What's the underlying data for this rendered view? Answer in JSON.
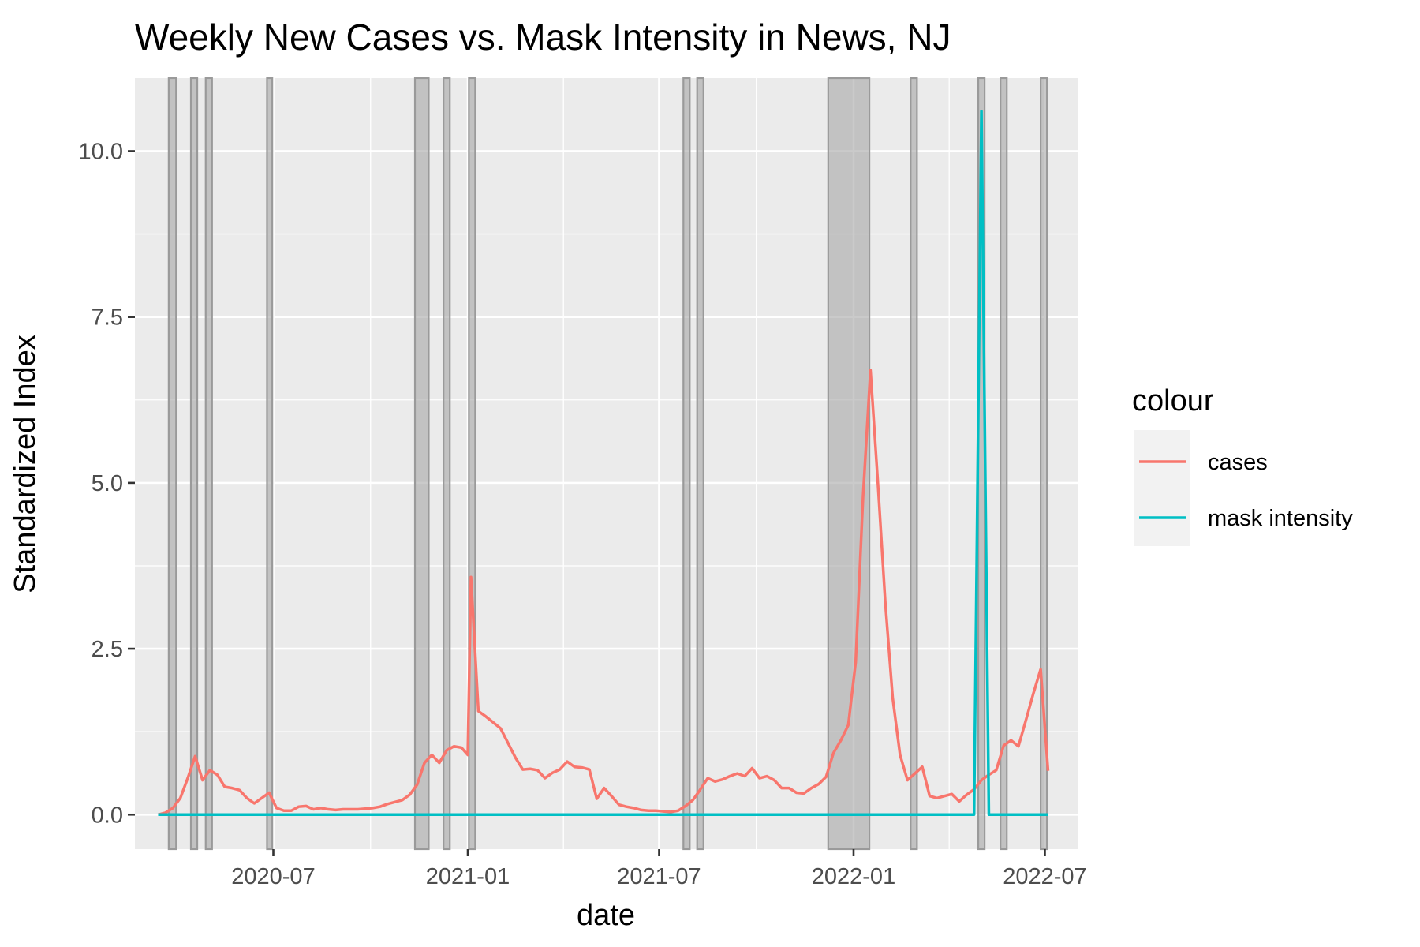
{
  "chart_data": {
    "type": "line",
    "title": "Weekly New Cases vs. Mask Intensity in News, NJ",
    "xlabel": "date",
    "ylabel": "Standardized Index",
    "x_ticks": [
      "2020-07",
      "2021-01",
      "2021-07",
      "2022-01",
      "2022-07"
    ],
    "y_ticks": [
      "0.0",
      "2.5",
      "5.0",
      "7.5",
      "10.0"
    ],
    "ylim": [
      -0.52,
      11.1
    ],
    "xlim": [
      "2020-02-21",
      "2022-08-01"
    ],
    "grid": true,
    "legend": {
      "title": "colour",
      "position": "right"
    },
    "series": [
      {
        "name": "cases",
        "color": "#F8766D",
        "points": [
          [
            "2020-03-14",
            0.0
          ],
          [
            "2020-03-21",
            0.03
          ],
          [
            "2020-03-28",
            0.1
          ],
          [
            "2020-04-04",
            0.25
          ],
          [
            "2020-04-11",
            0.55
          ],
          [
            "2020-04-18",
            0.88
          ],
          [
            "2020-04-25",
            0.52
          ],
          [
            "2020-05-02",
            0.67
          ],
          [
            "2020-05-09",
            0.6
          ],
          [
            "2020-05-16",
            0.42
          ],
          [
            "2020-05-23",
            0.4
          ],
          [
            "2020-05-30",
            0.37
          ],
          [
            "2020-06-06",
            0.25
          ],
          [
            "2020-06-13",
            0.17
          ],
          [
            "2020-06-20",
            0.25
          ],
          [
            "2020-06-27",
            0.33
          ],
          [
            "2020-07-04",
            0.1
          ],
          [
            "2020-07-11",
            0.06
          ],
          [
            "2020-07-18",
            0.06
          ],
          [
            "2020-07-25",
            0.12
          ],
          [
            "2020-08-01",
            0.13
          ],
          [
            "2020-08-08",
            0.08
          ],
          [
            "2020-08-15",
            0.1
          ],
          [
            "2020-08-22",
            0.08
          ],
          [
            "2020-08-29",
            0.07
          ],
          [
            "2020-09-05",
            0.08
          ],
          [
            "2020-09-12",
            0.08
          ],
          [
            "2020-09-19",
            0.08
          ],
          [
            "2020-09-26",
            0.09
          ],
          [
            "2020-10-03",
            0.1
          ],
          [
            "2020-10-10",
            0.12
          ],
          [
            "2020-10-17",
            0.16
          ],
          [
            "2020-10-24",
            0.19
          ],
          [
            "2020-10-31",
            0.22
          ],
          [
            "2020-11-07",
            0.3
          ],
          [
            "2020-11-14",
            0.45
          ],
          [
            "2020-11-21",
            0.78
          ],
          [
            "2020-11-28",
            0.9
          ],
          [
            "2020-12-05",
            0.78
          ],
          [
            "2020-12-12",
            0.97
          ],
          [
            "2020-12-19",
            1.03
          ],
          [
            "2020-12-26",
            1.01
          ],
          [
            "2021-01-01",
            0.9
          ],
          [
            "2021-01-04",
            3.58
          ],
          [
            "2021-01-11",
            1.56
          ],
          [
            "2021-01-18",
            1.48
          ],
          [
            "2021-01-25",
            1.39
          ],
          [
            "2021-02-01",
            1.3
          ],
          [
            "2021-02-08",
            1.08
          ],
          [
            "2021-02-15",
            0.86
          ],
          [
            "2021-02-22",
            0.68
          ],
          [
            "2021-03-01",
            0.69
          ],
          [
            "2021-03-08",
            0.67
          ],
          [
            "2021-03-15",
            0.55
          ],
          [
            "2021-03-22",
            0.63
          ],
          [
            "2021-03-29",
            0.68
          ],
          [
            "2021-04-05",
            0.8
          ],
          [
            "2021-04-12",
            0.72
          ],
          [
            "2021-04-19",
            0.71
          ],
          [
            "2021-04-26",
            0.68
          ],
          [
            "2021-05-03",
            0.24
          ],
          [
            "2021-05-10",
            0.4
          ],
          [
            "2021-05-17",
            0.28
          ],
          [
            "2021-05-24",
            0.15
          ],
          [
            "2021-05-31",
            0.12
          ],
          [
            "2021-06-07",
            0.1
          ],
          [
            "2021-06-14",
            0.07
          ],
          [
            "2021-06-21",
            0.06
          ],
          [
            "2021-06-28",
            0.06
          ],
          [
            "2021-07-05",
            0.05
          ],
          [
            "2021-07-12",
            0.04
          ],
          [
            "2021-07-19",
            0.06
          ],
          [
            "2021-07-26",
            0.13
          ],
          [
            "2021-08-02",
            0.22
          ],
          [
            "2021-08-09",
            0.38
          ],
          [
            "2021-08-16",
            0.55
          ],
          [
            "2021-08-23",
            0.5
          ],
          [
            "2021-08-30",
            0.53
          ],
          [
            "2021-09-06",
            0.58
          ],
          [
            "2021-09-13",
            0.62
          ],
          [
            "2021-09-20",
            0.58
          ],
          [
            "2021-09-27",
            0.7
          ],
          [
            "2021-10-04",
            0.55
          ],
          [
            "2021-10-11",
            0.58
          ],
          [
            "2021-10-18",
            0.52
          ],
          [
            "2021-10-25",
            0.4
          ],
          [
            "2021-11-01",
            0.4
          ],
          [
            "2021-11-08",
            0.33
          ],
          [
            "2021-11-15",
            0.32
          ],
          [
            "2021-11-22",
            0.4
          ],
          [
            "2021-11-29",
            0.46
          ],
          [
            "2021-12-06",
            0.57
          ],
          [
            "2021-12-13",
            0.93
          ],
          [
            "2021-12-20",
            1.12
          ],
          [
            "2021-12-27",
            1.35
          ],
          [
            "2022-01-03",
            2.3
          ],
          [
            "2022-01-10",
            4.8
          ],
          [
            "2022-01-17",
            6.7
          ],
          [
            "2022-01-24",
            5.0
          ],
          [
            "2022-01-31",
            3.2
          ],
          [
            "2022-02-07",
            1.76
          ],
          [
            "2022-02-14",
            0.9
          ],
          [
            "2022-02-21",
            0.52
          ],
          [
            "2022-02-28",
            0.62
          ],
          [
            "2022-03-07",
            0.72
          ],
          [
            "2022-03-14",
            0.28
          ],
          [
            "2022-03-21",
            0.25
          ],
          [
            "2022-03-28",
            0.28
          ],
          [
            "2022-04-04",
            0.31
          ],
          [
            "2022-04-11",
            0.2
          ],
          [
            "2022-04-18",
            0.3
          ],
          [
            "2022-04-25",
            0.38
          ],
          [
            "2022-05-02",
            0.52
          ],
          [
            "2022-05-09",
            0.6
          ],
          [
            "2022-05-16",
            0.67
          ],
          [
            "2022-05-23",
            1.04
          ],
          [
            "2022-05-30",
            1.12
          ],
          [
            "2022-06-06",
            1.03
          ],
          [
            "2022-06-13",
            1.42
          ],
          [
            "2022-06-20",
            1.82
          ],
          [
            "2022-06-27",
            2.19
          ],
          [
            "2022-07-04",
            0.66
          ]
        ]
      },
      {
        "name": "mask intensity",
        "color": "#00BFC4",
        "points": [
          [
            "2020-03-14",
            0.0
          ],
          [
            "2022-04-25",
            0.0
          ],
          [
            "2022-05-02",
            10.6
          ],
          [
            "2022-05-09",
            0.0
          ],
          [
            "2022-07-04",
            0.0
          ]
        ]
      }
    ],
    "shaded_periods": [
      [
        "2020-03-24",
        "2020-03-31"
      ],
      [
        "2020-04-14",
        "2020-04-20"
      ],
      [
        "2020-04-28",
        "2020-05-04"
      ],
      [
        "2020-06-25",
        "2020-06-30"
      ],
      [
        "2020-11-12",
        "2020-11-25"
      ],
      [
        "2020-12-09",
        "2020-12-15"
      ],
      [
        "2021-01-02",
        "2021-01-08"
      ],
      [
        "2021-07-24",
        "2021-07-30"
      ],
      [
        "2021-08-06",
        "2021-08-12"
      ],
      [
        "2021-12-08",
        "2022-01-16"
      ],
      [
        "2022-02-24",
        "2022-03-02"
      ],
      [
        "2022-04-29",
        "2022-05-05"
      ],
      [
        "2022-05-20",
        "2022-05-26"
      ],
      [
        "2022-06-27",
        "2022-07-03"
      ]
    ],
    "shade_color": "#a6a6a6"
  }
}
